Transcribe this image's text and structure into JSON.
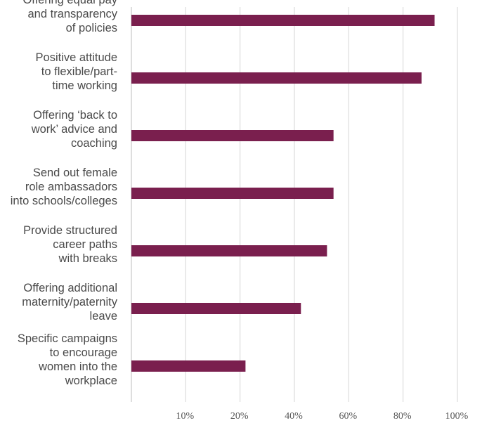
{
  "chart_data": {
    "type": "bar",
    "orientation": "horizontal",
    "categories": [
      "Offering equal pay and transparency of policies",
      "Positive attitude to flexible/part-time working",
      "Offering ‘back to work’ advice and coaching",
      "Send out female role ambassadors into schools/colleges",
      "Provide structured career paths with breaks",
      "Offering additional maternity/paternity leave",
      "Specific campaigns to encourage women into the workplace"
    ],
    "category_label_lines": [
      [
        "Offering equal pay",
        "and transparency",
        "of policies"
      ],
      [
        "Positive attitude",
        "to flexible/part-",
        "time working"
      ],
      [
        "Offering ‘back to",
        "work’ advice and",
        "coaching"
      ],
      [
        "Send out female",
        "role ambassadors",
        "into schools/colleges"
      ],
      [
        "Provide structured",
        "career paths",
        "with breaks"
      ],
      [
        "Offering additional",
        "maternity/paternity",
        "leave"
      ],
      [
        "Specific campaigns",
        "to encourage",
        "women into the",
        "workplace"
      ]
    ],
    "values": [
      93,
      89,
      62,
      62,
      60,
      52,
      35
    ],
    "xlim": [
      0,
      100
    ],
    "xticks": [
      10,
      20,
      40,
      60,
      80,
      100
    ],
    "xtick_labels": [
      "10%",
      "20%",
      "40%",
      "60%",
      "80%",
      "100%"
    ],
    "grid": true,
    "legend": "none",
    "bar_color": "#7a1f4e",
    "grid_color": "#d6d6d6",
    "axis_color": "#bdbdbd",
    "title": "",
    "xlabel": "",
    "ylabel": ""
  }
}
